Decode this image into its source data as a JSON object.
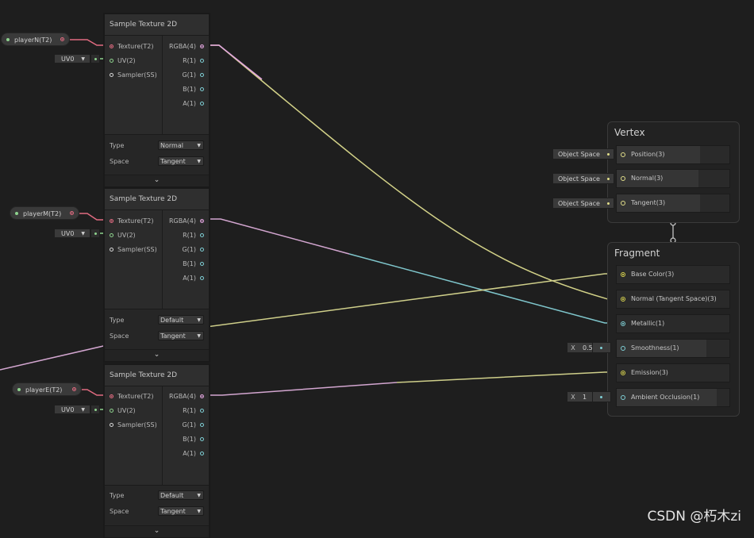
{
  "properties": [
    {
      "label": "playerN(T2)"
    },
    {
      "label": "playerM(T2)"
    },
    {
      "label": "playerE(T2)"
    }
  ],
  "sample_nodes": [
    {
      "title": "Sample Texture 2D",
      "uv_value": "UV0",
      "type_value": "Normal",
      "space_value": "Tangent"
    },
    {
      "title": "Sample Texture 2D",
      "uv_value": "UV0",
      "type_value": "Default",
      "space_value": "Tangent"
    },
    {
      "title": "Sample Texture 2D",
      "uv_value": "UV0",
      "type_value": "Default",
      "space_value": "Tangent"
    }
  ],
  "port_labels": {
    "texture": "Texture(T2)",
    "uv": "UV(2)",
    "sampler": "Sampler(SS)",
    "rgba": "RGBA(4)",
    "r": "R(1)",
    "g": "G(1)",
    "b": "B(1)",
    "a": "A(1)",
    "type": "Type",
    "space": "Space"
  },
  "vertex": {
    "title": "Vertex",
    "blocks": [
      {
        "label": "Position(3)",
        "input": "Object Space"
      },
      {
        "label": "Normal(3)",
        "input": "Object Space"
      },
      {
        "label": "Tangent(3)",
        "input": "Object Space"
      }
    ]
  },
  "fragment": {
    "title": "Fragment",
    "blocks": [
      {
        "label": "Base Color(3)"
      },
      {
        "label": "Normal (Tangent Space)(3)"
      },
      {
        "label": "Metallic(1)"
      },
      {
        "label": "Smoothness(1)",
        "x_label": "X",
        "x_value": "0.5"
      },
      {
        "label": "Emission(3)"
      },
      {
        "label": "Ambient Occlusion(1)",
        "x_label": "X",
        "x_value": "1"
      }
    ]
  },
  "watermark": "CSDN @朽木zi",
  "colors": {
    "texture_port": "#e06b80",
    "uv_port": "#8ed38e",
    "rgba_port": "#e3a6e0",
    "vector3_port": "#d8d34e",
    "float_port": "#7fd0d6"
  }
}
